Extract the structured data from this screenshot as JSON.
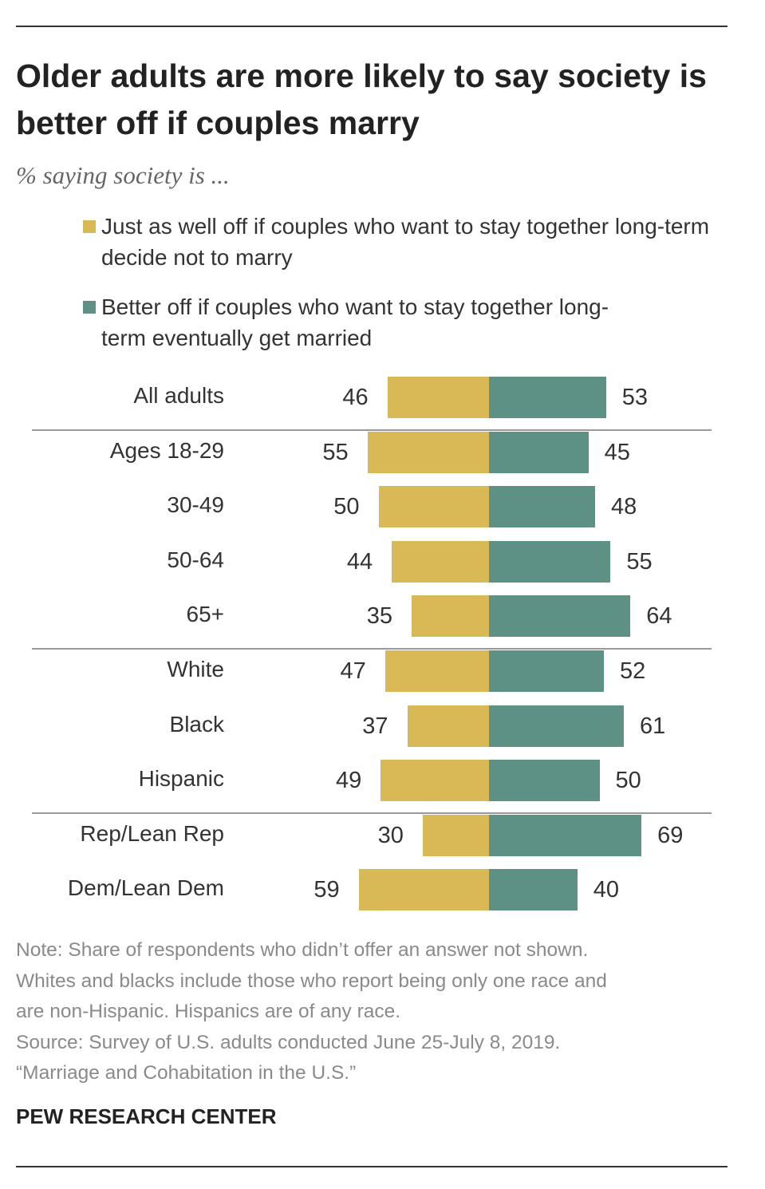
{
  "chart_data": {
    "type": "bar",
    "orientation": "horizontal-diverging",
    "title": "Older adults are more likely to say society is better off if couples marry",
    "subtitle": "% saying society is ...",
    "categories": [
      "All adults",
      "Ages 18-29",
      "30-49",
      "50-64",
      "65+",
      "White",
      "Black",
      "Hispanic",
      "Rep/Lean Rep",
      "Dem/Lean Dem"
    ],
    "groups_separated_after": [
      "All adults",
      "65+",
      "Hispanic"
    ],
    "series": [
      {
        "name": "Just as well off if couples who want to stay together long-term decide not to marry",
        "color": "#D9B856",
        "direction": "left",
        "values": [
          46,
          55,
          50,
          44,
          35,
          47,
          37,
          49,
          30,
          59
        ]
      },
      {
        "name": "Better off if couples who want to stay together long-term eventually get married",
        "color": "#5E9186",
        "direction": "right",
        "values": [
          53,
          45,
          48,
          55,
          64,
          52,
          61,
          50,
          69,
          40
        ]
      }
    ],
    "legend_placement": "top",
    "grid": false,
    "notes": [
      "Note: Share of respondents who didn’t offer an answer not shown.",
      "Whites and blacks include those who report being only one race and",
      "are non-Hispanic. Hispanics are of any race.",
      "Source: Survey of U.S. adults conducted June 25-July 8, 2019.",
      "“Marriage and Cohabitation in the U.S.”"
    ],
    "brand": "PEW RESEARCH CENTER"
  }
}
